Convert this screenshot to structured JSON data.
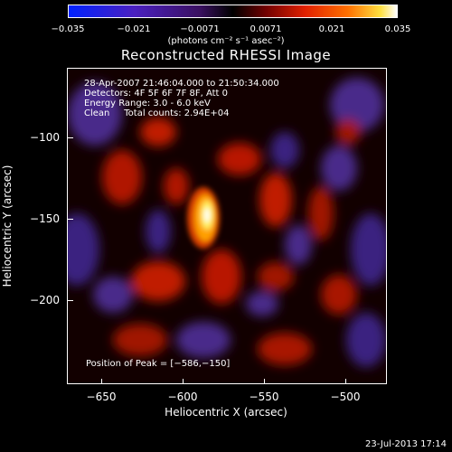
{
  "colorbar": {
    "ticks": [
      "−0.035",
      "−0.021",
      "−0.0071",
      "0.0071",
      "0.021",
      "0.035"
    ],
    "units": "(photons cm⁻² s⁻¹ asec⁻²)"
  },
  "plot": {
    "title": "Reconstructed RHESSI Image",
    "xlabel": "Heliocentric X (arcsec)",
    "ylabel": "Heliocentric Y (arcsec)",
    "xticks": [
      "−650",
      "−600",
      "−550",
      "−500"
    ],
    "yticks": [
      "−100",
      "−150",
      "−200"
    ],
    "info": [
      "28-Apr-2007 21:46:04.000 to 21:50:34.000",
      "Detectors: 4F 5F 6F 7F 8F, Att 0",
      "Energy Range: 3.0 - 6.0 keV",
      "Clean     Total counts: 2.94E+04"
    ],
    "peak": "Position of Peak = [−586,−150]"
  },
  "timestamp": "23-Jul-2013 17:14",
  "chart_data": {
    "type": "heatmap",
    "title": "Reconstructed RHESSI Image",
    "xlabel": "Heliocentric X (arcsec)",
    "ylabel": "Heliocentric Y (arcsec)",
    "xlim": [
      -672,
      -477
    ],
    "ylim": [
      -255,
      -60
    ],
    "colorbar_range": [
      -0.035,
      0.035
    ],
    "colorbar_ticks": [
      -0.035,
      -0.021,
      -0.0071,
      0.0071,
      0.021,
      0.035
    ],
    "peak": [
      -586,
      -150
    ],
    "colors": {
      "negative": "#1a1aff",
      "zero": "#000000",
      "positive": "#ffffff",
      "mid": "#cc1a00"
    }
  }
}
